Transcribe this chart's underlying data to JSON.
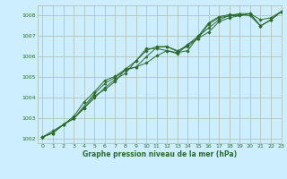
{
  "title": "Graphe pression niveau de la mer (hPa)",
  "background_color": "#cceeff",
  "grid_color": "#aabbaa",
  "line_color": "#2d6a2d",
  "xlim": [
    -0.5,
    23
  ],
  "ylim": [
    1001.8,
    1008.5
  ],
  "yticks": [
    1002,
    1003,
    1004,
    1005,
    1006,
    1007,
    1008
  ],
  "xticks": [
    0,
    1,
    2,
    3,
    4,
    5,
    6,
    7,
    8,
    9,
    10,
    11,
    12,
    13,
    14,
    15,
    16,
    17,
    18,
    19,
    20,
    21,
    22,
    23
  ],
  "series": [
    [
      1002.1,
      1002.3,
      1002.7,
      1003.0,
      1003.5,
      1004.0,
      1004.5,
      1004.9,
      1005.2,
      1005.8,
      1006.3,
      1006.5,
      1006.5,
      1006.3,
      1006.5,
      1006.9,
      1007.2,
      1007.7,
      1007.9,
      1008.0,
      1008.1,
      1007.8,
      1007.9,
      1008.2
    ],
    [
      1002.1,
      1002.3,
      1002.7,
      1003.0,
      1003.5,
      1004.1,
      1004.4,
      1004.8,
      1005.4,
      1005.8,
      1006.4,
      1006.4,
      1006.3,
      1006.2,
      1006.3,
      1007.0,
      1007.4,
      1007.8,
      1008.0,
      1008.0,
      1008.1,
      1007.5,
      1007.8,
      1008.2
    ],
    [
      1002.1,
      1002.3,
      1002.7,
      1003.0,
      1003.6,
      1004.2,
      1004.7,
      1005.0,
      1005.35,
      1005.5,
      1006.0,
      1006.45,
      1006.5,
      1006.25,
      1006.6,
      1006.9,
      1007.6,
      1007.9,
      1008.0,
      1008.1,
      1008.1,
      1007.5,
      1007.8,
      1008.2
    ],
    [
      1002.1,
      1002.4,
      1002.7,
      1003.1,
      1003.8,
      1004.3,
      1004.85,
      1005.05,
      1005.4,
      1005.5,
      1005.7,
      1006.05,
      1006.3,
      1006.15,
      1006.6,
      1007.0,
      1007.65,
      1007.95,
      1008.05,
      1008.05,
      1008.0,
      1007.5,
      1007.8,
      1008.2
    ]
  ]
}
